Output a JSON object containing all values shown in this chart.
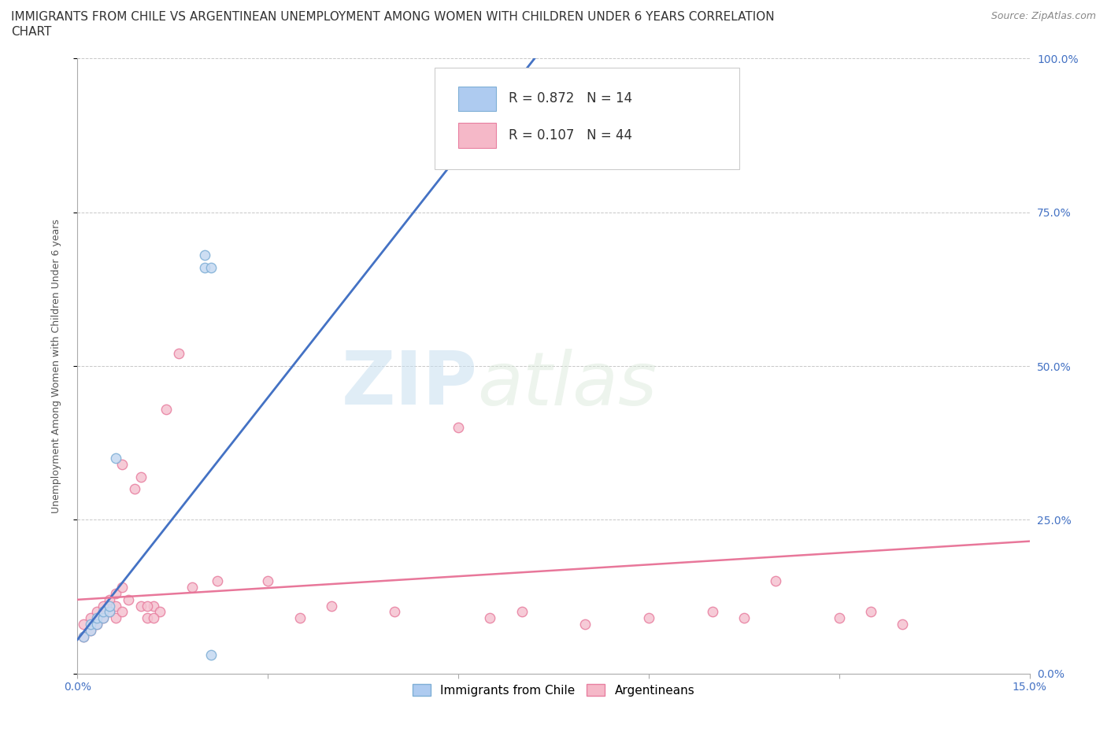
{
  "title_line1": "IMMIGRANTS FROM CHILE VS ARGENTINEAN UNEMPLOYMENT AMONG WOMEN WITH CHILDREN UNDER 6 YEARS CORRELATION",
  "title_line2": "CHART",
  "source": "Source: ZipAtlas.com",
  "xlim": [
    0.0,
    0.15
  ],
  "ylim": [
    0.0,
    1.0
  ],
  "ylabel": "Unemployment Among Women with Children Under 6 years",
  "background_color": "#ffffff",
  "watermark_zip": "ZIP",
  "watermark_atlas": "atlas",
  "legend1_label": "R = 0.872   N = 14",
  "legend2_label": "R = 0.107   N = 44",
  "legend_color1": "#aecbf0",
  "legend_color2": "#f5b8c8",
  "line_color1": "#4472c4",
  "line_color2": "#e8779a",
  "scatter_color1": "#c5d9f1",
  "scatter_color2": "#f5c2d0",
  "scatter_edgecolor1": "#7fafd6",
  "scatter_edgecolor2": "#e87fa0",
  "title_fontsize": 11,
  "axis_fontsize": 9,
  "tick_fontsize": 10,
  "legend_fontsize": 12,
  "source_fontsize": 9,
  "chile_x": [
    0.001,
    0.002,
    0.002,
    0.003,
    0.003,
    0.004,
    0.004,
    0.005,
    0.005,
    0.006,
    0.02,
    0.02,
    0.021,
    0.021
  ],
  "chile_y": [
    0.06,
    0.07,
    0.08,
    0.08,
    0.09,
    0.09,
    0.1,
    0.1,
    0.11,
    0.35,
    0.66,
    0.68,
    0.66,
    0.03
  ],
  "argentina_x": [
    0.001,
    0.001,
    0.002,
    0.002,
    0.003,
    0.003,
    0.004,
    0.004,
    0.005,
    0.005,
    0.006,
    0.006,
    0.007,
    0.007,
    0.008,
    0.009,
    0.01,
    0.011,
    0.012,
    0.013,
    0.014,
    0.006,
    0.007,
    0.01,
    0.011,
    0.012,
    0.016,
    0.018,
    0.022,
    0.03,
    0.035,
    0.04,
    0.05,
    0.06,
    0.065,
    0.07,
    0.08,
    0.09,
    0.1,
    0.105,
    0.11,
    0.12,
    0.125,
    0.13
  ],
  "argentina_y": [
    0.06,
    0.08,
    0.07,
    0.09,
    0.08,
    0.1,
    0.09,
    0.11,
    0.1,
    0.12,
    0.09,
    0.11,
    0.1,
    0.34,
    0.12,
    0.3,
    0.11,
    0.09,
    0.11,
    0.1,
    0.43,
    0.13,
    0.14,
    0.32,
    0.11,
    0.09,
    0.52,
    0.14,
    0.15,
    0.15,
    0.09,
    0.11,
    0.1,
    0.4,
    0.09,
    0.1,
    0.08,
    0.09,
    0.1,
    0.09,
    0.15,
    0.09,
    0.1,
    0.08
  ],
  "chile_line_x": [
    0.0,
    0.072
  ],
  "chile_line_y": [
    0.055,
    1.0
  ],
  "argentina_line_x": [
    0.0,
    0.15
  ],
  "argentina_line_y": [
    0.12,
    0.215
  ]
}
